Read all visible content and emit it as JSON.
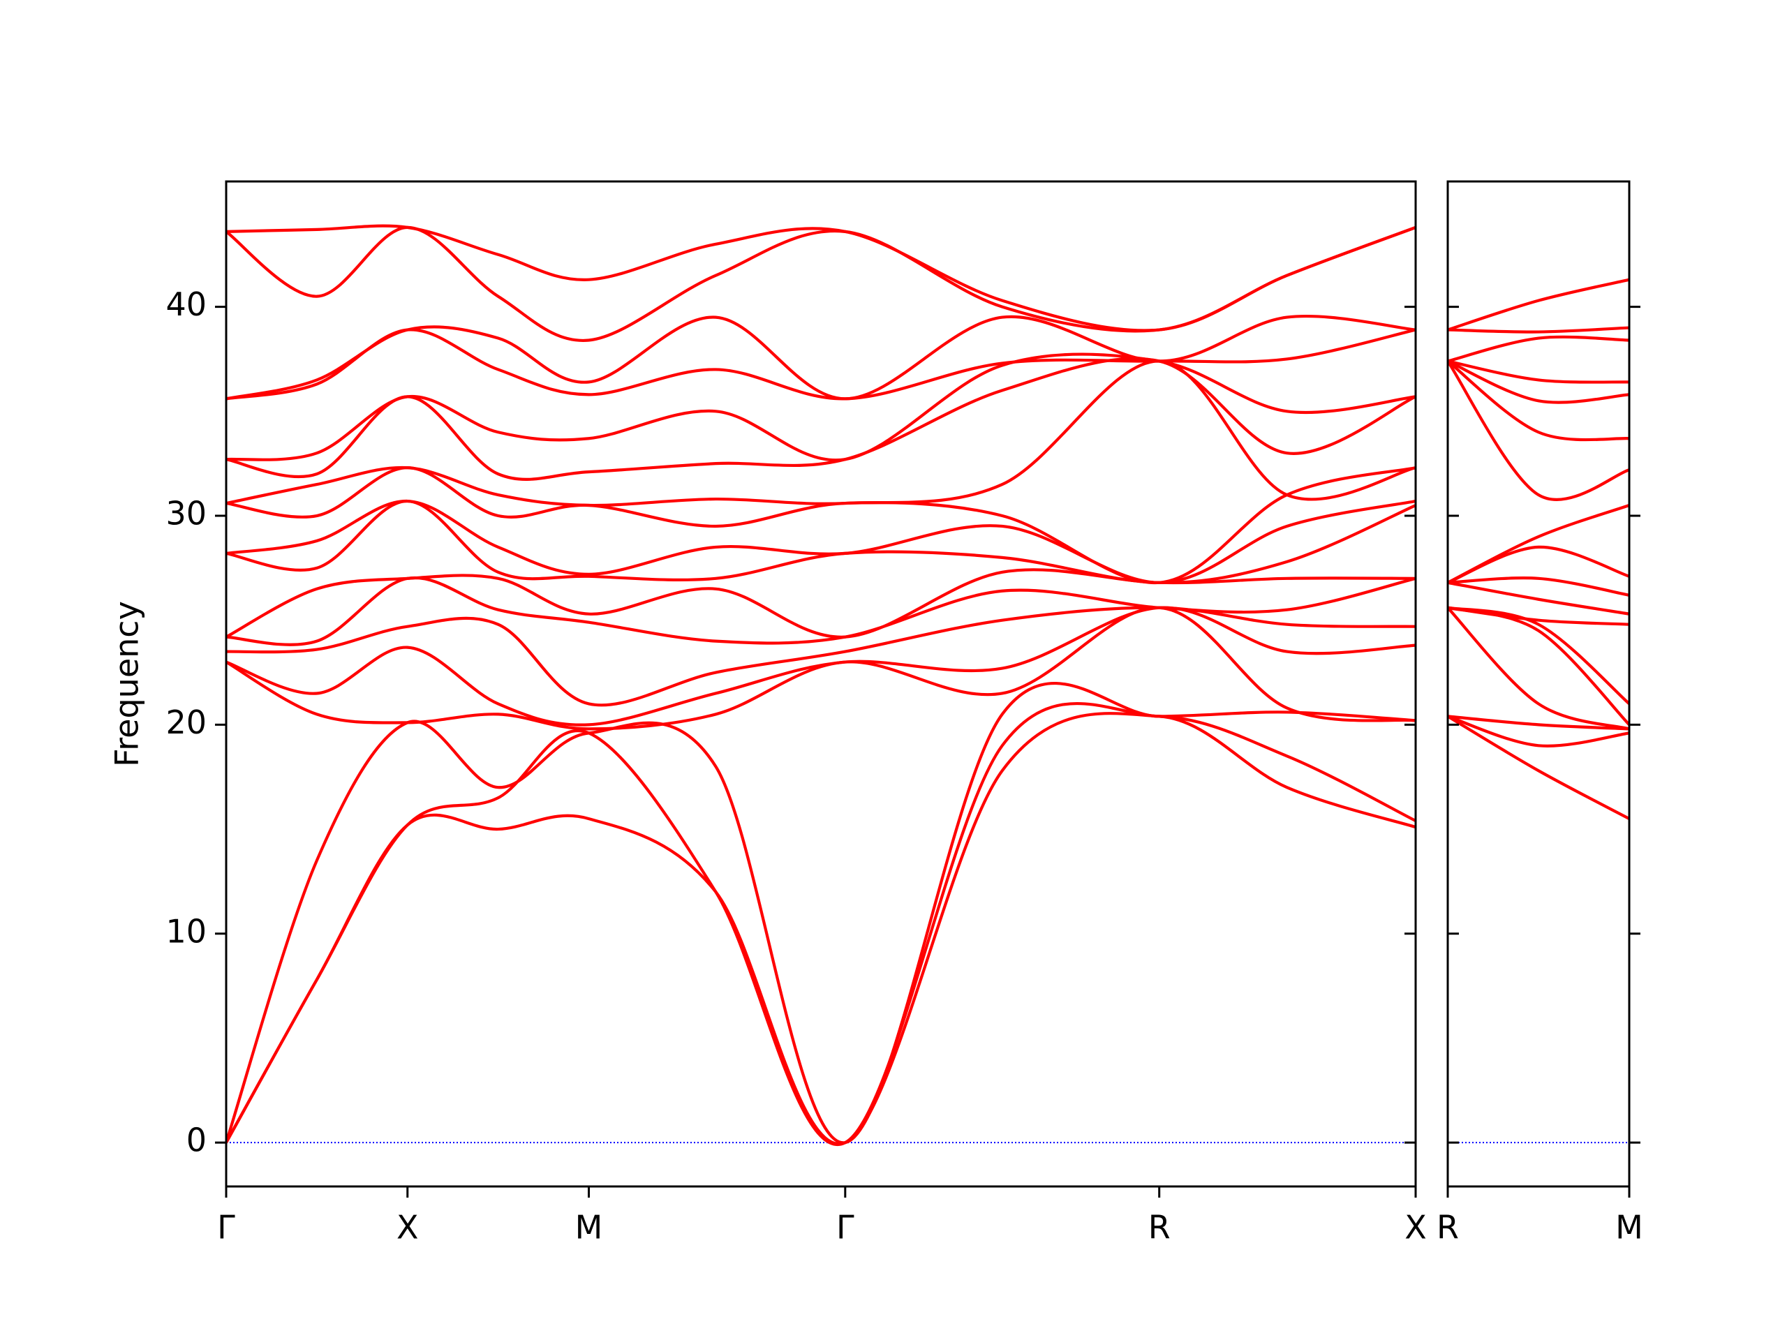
{
  "chart_data": [
    {
      "type": "line",
      "y_label": "Frequency",
      "line_color": "#ff0000",
      "zero_line_color": "#0000ff",
      "x": [
        0,
        0.5,
        1,
        1.5,
        2,
        2.7,
        3.414,
        4.28,
        5.146,
        5.85,
        6.56
      ],
      "xlim": [
        0,
        6.56
      ],
      "xticks": [
        {
          "value": 0,
          "label": "Γ"
        },
        {
          "value": 1,
          "label": "X"
        },
        {
          "value": 2,
          "label": "M"
        },
        {
          "value": 3.414,
          "label": "Γ"
        },
        {
          "value": 5.146,
          "label": "R"
        },
        {
          "value": 6.56,
          "label": "X"
        }
      ],
      "ylim": [
        -2.1,
        46
      ],
      "yticks": [
        0,
        10,
        20,
        30,
        40
      ],
      "series": [
        {
          "values": [
            0,
            7.8,
            15.2,
            15,
            15.5,
            12,
            0,
            17.8,
            20.4,
            17,
            15.1
          ]
        },
        {
          "values": [
            0,
            7.8,
            15.2,
            16.5,
            19.6,
            12,
            0,
            19,
            20.4,
            18.5,
            15.4
          ]
        },
        {
          "values": [
            0,
            13.5,
            20.1,
            17,
            19.6,
            18,
            0,
            20.5,
            20.4,
            20.6,
            20.2
          ]
        },
        {
          "values": [
            23,
            20.5,
            20.1,
            20.5,
            19.8,
            20.5,
            23,
            21.5,
            25.6,
            20.8,
            20.2
          ]
        },
        {
          "values": [
            23,
            21.5,
            23.7,
            21,
            20,
            21.5,
            23,
            22.7,
            25.6,
            23.5,
            23.8
          ]
        },
        {
          "values": [
            23.5,
            23.6,
            24.7,
            24.8,
            21,
            22.5,
            23.5,
            25,
            25.6,
            24.8,
            24.7
          ]
        },
        {
          "values": [
            24.2,
            24,
            27,
            25.5,
            24.9,
            24,
            24.2,
            26.4,
            25.6,
            25.5,
            27
          ]
        },
        {
          "values": [
            24.2,
            26.5,
            27,
            27,
            25.3,
            26.5,
            24.2,
            27.3,
            26.8,
            27,
            27
          ]
        },
        {
          "values": [
            28.2,
            27.5,
            30.7,
            27.3,
            27.1,
            27,
            28.2,
            28,
            26.8,
            27.8,
            30.5
          ]
        },
        {
          "values": [
            28.2,
            28.8,
            30.7,
            28.5,
            27.2,
            28.5,
            28.2,
            29.5,
            26.8,
            29.5,
            30.7
          ]
        },
        {
          "values": [
            30.6,
            30,
            32.3,
            30,
            30.5,
            29.5,
            30.6,
            30,
            26.8,
            31,
            32.3
          ]
        },
        {
          "values": [
            30.6,
            31.5,
            32.3,
            31,
            30.5,
            30.8,
            30.6,
            31.5,
            37.4,
            31,
            32.3
          ]
        },
        {
          "values": [
            32.7,
            32,
            35.7,
            32,
            32.1,
            32.5,
            32.7,
            36,
            37.4,
            33,
            35.7
          ]
        },
        {
          "values": [
            32.7,
            33,
            35.7,
            34,
            33.7,
            35,
            32.7,
            37.2,
            37.4,
            35,
            35.7
          ]
        },
        {
          "values": [
            35.6,
            36.3,
            38.9,
            37,
            35.8,
            37,
            35.6,
            37.3,
            37.4,
            37.5,
            38.9
          ]
        },
        {
          "values": [
            35.6,
            36.5,
            38.9,
            38.5,
            36.4,
            39.5,
            35.6,
            39.5,
            37.4,
            39.5,
            38.9
          ]
        },
        {
          "values": [
            43.6,
            40.5,
            43.8,
            40.5,
            38.4,
            41.5,
            43.6,
            40,
            38.9,
            41.5,
            43.8
          ]
        },
        {
          "values": [
            43.6,
            43.7,
            43.8,
            42.5,
            41.3,
            43,
            43.6,
            40.3,
            38.9,
            41.5,
            43.8
          ]
        }
      ]
    },
    {
      "type": "line",
      "x": [
        0,
        0.5,
        1
      ],
      "xlim": [
        0,
        1
      ],
      "xticks": [
        {
          "value": 0,
          "label": "R"
        },
        {
          "value": 1,
          "label": "M"
        }
      ],
      "series": [
        {
          "values": [
            20.4,
            17.8,
            15.5
          ]
        },
        {
          "values": [
            20.4,
            19,
            19.6
          ]
        },
        {
          "values": [
            20.4,
            20,
            19.8
          ]
        },
        {
          "values": [
            25.6,
            21,
            19.8
          ]
        },
        {
          "values": [
            25.6,
            24.5,
            20
          ]
        },
        {
          "values": [
            25.6,
            24.8,
            21
          ]
        },
        {
          "values": [
            25.6,
            25,
            24.8
          ]
        },
        {
          "values": [
            26.8,
            26,
            25.3
          ]
        },
        {
          "values": [
            26.8,
            27,
            26.2
          ]
        },
        {
          "values": [
            26.8,
            28.5,
            27.1
          ]
        },
        {
          "values": [
            26.8,
            29,
            30.5
          ]
        },
        {
          "values": [
            37.4,
            31,
            32.2
          ]
        },
        {
          "values": [
            37.4,
            34,
            33.7
          ]
        },
        {
          "values": [
            37.4,
            35.5,
            35.8
          ]
        },
        {
          "values": [
            37.4,
            36.5,
            36.4
          ]
        },
        {
          "values": [
            37.4,
            38.5,
            38.4
          ]
        },
        {
          "values": [
            38.9,
            38.8,
            39
          ]
        },
        {
          "values": [
            38.9,
            40.3,
            41.3
          ]
        }
      ]
    }
  ]
}
